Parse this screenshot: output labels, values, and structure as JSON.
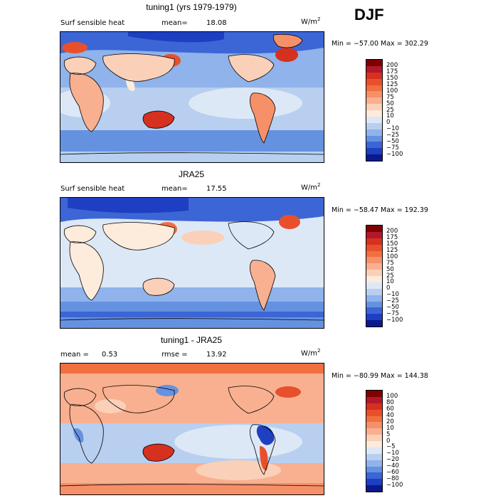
{
  "season": "DJF",
  "panels": [
    {
      "title": "tuning1 (yrs 1979-1979)",
      "variable": "Surf sensible heat",
      "stat_label": "mean=",
      "stat_value": "18.08",
      "units_base": "W/m",
      "units_exp": "2",
      "minmax": "Min = −57.00 Max = 302.29",
      "colorbar_labels": [
        "200",
        "175",
        "150",
        "125",
        "100",
        "75",
        "50",
        "25",
        "10",
        "0",
        "−10",
        "−25",
        "−50",
        "−75",
        "−100"
      ],
      "colorbar_colors": [
        "#7f0000",
        "#b2182b",
        "#d6301f",
        "#e8502c",
        "#f07040",
        "#f59068",
        "#f8b090",
        "#fbd0b8",
        "#fdebdc",
        "#dde8f6",
        "#b8cff0",
        "#8fb3ea",
        "#6592e0",
        "#3c66d6",
        "#1f3fc2",
        "#0a1a8c"
      ]
    },
    {
      "title": "JRA25",
      "variable": "Surf sensible heat",
      "stat_label": "mean=",
      "stat_value": "17.55",
      "units_base": "W/m",
      "units_exp": "2",
      "minmax": "Min = −58.47 Max = 192.39",
      "colorbar_labels": [
        "200",
        "175",
        "150",
        "125",
        "100",
        "75",
        "50",
        "25",
        "10",
        "0",
        "−10",
        "−25",
        "−50",
        "−75",
        "−100"
      ],
      "colorbar_colors": [
        "#7f0000",
        "#b2182b",
        "#d6301f",
        "#e8502c",
        "#f07040",
        "#f59068",
        "#f8b090",
        "#fbd0b8",
        "#fdebdc",
        "#dde8f6",
        "#b8cff0",
        "#8fb3ea",
        "#6592e0",
        "#3c66d6",
        "#1f3fc2",
        "#0a1a8c"
      ]
    },
    {
      "title": "tuning1 - JRA25",
      "mean_label": "mean =",
      "mean_value": "0.53",
      "rmse_label": "rmse =",
      "rmse_value": "13.92",
      "units_base": "W/m",
      "units_exp": "2",
      "minmax": "Min = −80.99 Max = 144.38",
      "colorbar_labels": [
        "100",
        "80",
        "60",
        "40",
        "20",
        "10",
        "5",
        "0",
        "−5",
        "−10",
        "−20",
        "−40",
        "−60",
        "−80",
        "−100"
      ],
      "colorbar_colors": [
        "#7f0000",
        "#b2182b",
        "#d6301f",
        "#e8502c",
        "#f07040",
        "#f59068",
        "#f8b090",
        "#fbd0b8",
        "#fdebdc",
        "#dde8f6",
        "#b8cff0",
        "#8fb3ea",
        "#6592e0",
        "#3c66d6",
        "#1f3fc2",
        "#0a1a8c"
      ]
    }
  ]
}
